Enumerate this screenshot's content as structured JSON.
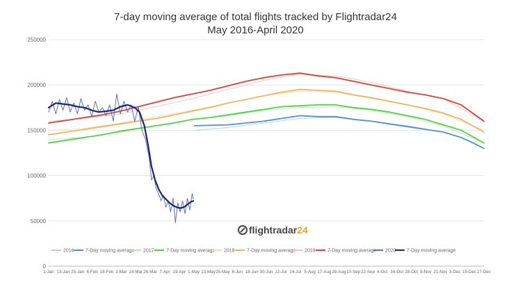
{
  "chart_data": {
    "type": "line",
    "title": "7-day moving average of total flights tracked by Flightradar24",
    "subtitle": "May 2016-April 2020",
    "xlabel": "",
    "ylabel": "",
    "ylim": [
      0,
      250000
    ],
    "yticks": [
      0,
      50000,
      100000,
      150000,
      200000,
      250000
    ],
    "ytick_labels": [
      "0",
      "50000",
      "100000",
      "150000",
      "200000",
      "250000"
    ],
    "xtick_labels": [
      "1-Jan",
      "13-Jan",
      "25-Jan",
      "6-Feb",
      "18-Feb",
      "2-Mar",
      "14-Mar",
      "26-Mar",
      "7-Apr",
      "19-Apr",
      "1-May",
      "13-May",
      "25-May",
      "6-Jun",
      "18-Jun",
      "30-Jun",
      "12-Jul",
      "24-Jul",
      "5-Aug",
      "17-Aug",
      "29-Aug",
      "10-Sep",
      "22-Sep",
      "4-Oct",
      "16-Oct",
      "28-Oct",
      "9-Nov",
      "21-Nov",
      "3-Dec",
      "15-Dec",
      "27-Dec"
    ],
    "x_domain_days": [
      0,
      364
    ],
    "grid": true,
    "legend_position": "bottom",
    "watermark": "flightradar24",
    "series": [
      {
        "name": "2016",
        "role": "daily",
        "color": "#aed1ef",
        "points": [
          [
            122,
            150000
          ],
          [
            150,
            153000
          ],
          [
            180,
            158000
          ],
          [
            210,
            163000
          ],
          [
            240,
            164000
          ],
          [
            270,
            160000
          ],
          [
            300,
            155000
          ],
          [
            330,
            148000
          ],
          [
            345,
            142000
          ],
          [
            364,
            130000
          ]
        ]
      },
      {
        "name": "7-Day moving average",
        "role": "avg",
        "year": "2016",
        "color": "#4a8fd9",
        "points": [
          [
            122,
            155000
          ],
          [
            150,
            156000
          ],
          [
            180,
            160000
          ],
          [
            195,
            163000
          ],
          [
            210,
            166000
          ],
          [
            225,
            165000
          ],
          [
            240,
            165000
          ],
          [
            255,
            162000
          ],
          [
            270,
            160000
          ],
          [
            285,
            157000
          ],
          [
            300,
            154000
          ],
          [
            315,
            151000
          ],
          [
            330,
            148000
          ],
          [
            345,
            142000
          ],
          [
            355,
            136000
          ],
          [
            364,
            130000
          ]
        ]
      },
      {
        "name": "2017",
        "role": "daily",
        "color": "#bdeab1",
        "points": [
          [
            0,
            140000
          ],
          [
            30,
            142000
          ],
          [
            60,
            148000
          ],
          [
            90,
            155000
          ],
          [
            120,
            162000
          ],
          [
            150,
            166000
          ],
          [
            180,
            172000
          ],
          [
            210,
            175000
          ],
          [
            240,
            176000
          ],
          [
            270,
            172000
          ],
          [
            300,
            165000
          ],
          [
            330,
            155000
          ],
          [
            364,
            136000
          ]
        ]
      },
      {
        "name": "7-Day moving average",
        "role": "avg",
        "year": "2017",
        "color": "#52d146",
        "points": [
          [
            0,
            136000
          ],
          [
            15,
            139000
          ],
          [
            30,
            142000
          ],
          [
            45,
            145000
          ],
          [
            60,
            149000
          ],
          [
            75,
            152000
          ],
          [
            90,
            155000
          ],
          [
            105,
            158000
          ],
          [
            120,
            162000
          ],
          [
            135,
            164000
          ],
          [
            150,
            167000
          ],
          [
            165,
            170000
          ],
          [
            180,
            173000
          ],
          [
            195,
            176000
          ],
          [
            210,
            177000
          ],
          [
            225,
            178000
          ],
          [
            240,
            178000
          ],
          [
            255,
            175000
          ],
          [
            270,
            173000
          ],
          [
            285,
            170000
          ],
          [
            300,
            166000
          ],
          [
            315,
            162000
          ],
          [
            330,
            156000
          ],
          [
            345,
            150000
          ],
          [
            364,
            136000
          ]
        ]
      },
      {
        "name": "2018",
        "role": "daily",
        "color": "#f7dcb2",
        "points": [
          [
            0,
            150000
          ],
          [
            30,
            152000
          ],
          [
            60,
            158000
          ],
          [
            90,
            165000
          ],
          [
            120,
            172000
          ],
          [
            150,
            180000
          ],
          [
            180,
            188000
          ],
          [
            210,
            193000
          ],
          [
            240,
            192000
          ],
          [
            270,
            185000
          ],
          [
            300,
            178000
          ],
          [
            330,
            168000
          ],
          [
            364,
            150000
          ]
        ]
      },
      {
        "name": "7-Day moving average",
        "role": "avg",
        "year": "2018",
        "color": "#f2b45b",
        "points": [
          [
            0,
            145000
          ],
          [
            15,
            148000
          ],
          [
            30,
            151000
          ],
          [
            45,
            154000
          ],
          [
            60,
            157000
          ],
          [
            75,
            160000
          ],
          [
            90,
            163000
          ],
          [
            105,
            167000
          ],
          [
            120,
            171000
          ],
          [
            135,
            175000
          ],
          [
            150,
            180000
          ],
          [
            165,
            184000
          ],
          [
            180,
            188000
          ],
          [
            195,
            192000
          ],
          [
            210,
            195000
          ],
          [
            225,
            194000
          ],
          [
            240,
            193000
          ],
          [
            255,
            189000
          ],
          [
            270,
            186000
          ],
          [
            285,
            182000
          ],
          [
            300,
            178000
          ],
          [
            315,
            174000
          ],
          [
            330,
            169000
          ],
          [
            345,
            162000
          ],
          [
            364,
            148000
          ]
        ]
      },
      {
        "name": "2019",
        "role": "daily",
        "color": "#f6c2ba",
        "points": [
          [
            0,
            160000
          ],
          [
            30,
            163000
          ],
          [
            60,
            168000
          ],
          [
            90,
            176000
          ],
          [
            120,
            185000
          ],
          [
            150,
            195000
          ],
          [
            180,
            205000
          ],
          [
            210,
            212000
          ],
          [
            240,
            210000
          ],
          [
            270,
            203000
          ],
          [
            300,
            193000
          ],
          [
            330,
            185000
          ],
          [
            364,
            160000
          ]
        ]
      },
      {
        "name": "7-Day moving average",
        "role": "avg",
        "year": "2019",
        "color": "#de3e33",
        "points": [
          [
            0,
            158000
          ],
          [
            15,
            161000
          ],
          [
            30,
            164000
          ],
          [
            45,
            167000
          ],
          [
            60,
            171000
          ],
          [
            75,
            176000
          ],
          [
            90,
            181000
          ],
          [
            105,
            186000
          ],
          [
            120,
            190000
          ],
          [
            135,
            194000
          ],
          [
            150,
            199000
          ],
          [
            165,
            204000
          ],
          [
            180,
            208000
          ],
          [
            195,
            211000
          ],
          [
            210,
            213000
          ],
          [
            225,
            210000
          ],
          [
            240,
            208000
          ],
          [
            255,
            204000
          ],
          [
            270,
            200000
          ],
          [
            285,
            196000
          ],
          [
            300,
            192000
          ],
          [
            315,
            189000
          ],
          [
            330,
            185000
          ],
          [
            345,
            178000
          ],
          [
            364,
            160000
          ]
        ]
      },
      {
        "name": "2020",
        "role": "daily",
        "color": "#5a6fbf",
        "points": [
          [
            0,
            170000
          ],
          [
            3,
            182000
          ],
          [
            6,
            168000
          ],
          [
            9,
            184000
          ],
          [
            12,
            172000
          ],
          [
            15,
            186000
          ],
          [
            18,
            170000
          ],
          [
            21,
            180000
          ],
          [
            24,
            168000
          ],
          [
            27,
            185000
          ],
          [
            30,
            172000
          ],
          [
            33,
            178000
          ],
          [
            36,
            165000
          ],
          [
            39,
            182000
          ],
          [
            42,
            170000
          ],
          [
            45,
            175000
          ],
          [
            48,
            166000
          ],
          [
            51,
            178000
          ],
          [
            54,
            160000
          ],
          [
            57,
            190000
          ],
          [
            60,
            168000
          ],
          [
            63,
            182000
          ],
          [
            66,
            170000
          ],
          [
            69,
            178000
          ],
          [
            72,
            160000
          ],
          [
            75,
            176000
          ],
          [
            78,
            150000
          ],
          [
            81,
            140000
          ],
          [
            84,
            120000
          ],
          [
            86,
            95000
          ],
          [
            88,
            100000
          ],
          [
            90,
            85000
          ],
          [
            92,
            80000
          ],
          [
            94,
            72000
          ],
          [
            96,
            78000
          ],
          [
            98,
            65000
          ],
          [
            100,
            72000
          ],
          [
            102,
            60000
          ],
          [
            104,
            75000
          ],
          [
            106,
            48000
          ],
          [
            108,
            70000
          ],
          [
            110,
            60000
          ],
          [
            112,
            72000
          ],
          [
            114,
            58000
          ],
          [
            116,
            75000
          ],
          [
            118,
            62000
          ],
          [
            120,
            80000
          ],
          [
            121,
            74000
          ]
        ]
      },
      {
        "name": "7-Day moving average",
        "role": "avg",
        "year": "2020",
        "color": "#1a237e",
        "points": [
          [
            0,
            175000
          ],
          [
            6,
            180000
          ],
          [
            12,
            179000
          ],
          [
            18,
            178000
          ],
          [
            24,
            176000
          ],
          [
            30,
            175000
          ],
          [
            36,
            172000
          ],
          [
            42,
            170000
          ],
          [
            48,
            171000
          ],
          [
            54,
            172000
          ],
          [
            60,
            176000
          ],
          [
            66,
            178000
          ],
          [
            72,
            175000
          ],
          [
            76,
            170000
          ],
          [
            80,
            155000
          ],
          [
            83,
            135000
          ],
          [
            86,
            110000
          ],
          [
            89,
            95000
          ],
          [
            92,
            85000
          ],
          [
            95,
            78000
          ],
          [
            98,
            74000
          ],
          [
            101,
            70000
          ],
          [
            104,
            67000
          ],
          [
            107,
            65000
          ],
          [
            110,
            64000
          ],
          [
            113,
            65000
          ],
          [
            116,
            68000
          ],
          [
            119,
            71000
          ],
          [
            121,
            72000
          ]
        ]
      }
    ]
  }
}
